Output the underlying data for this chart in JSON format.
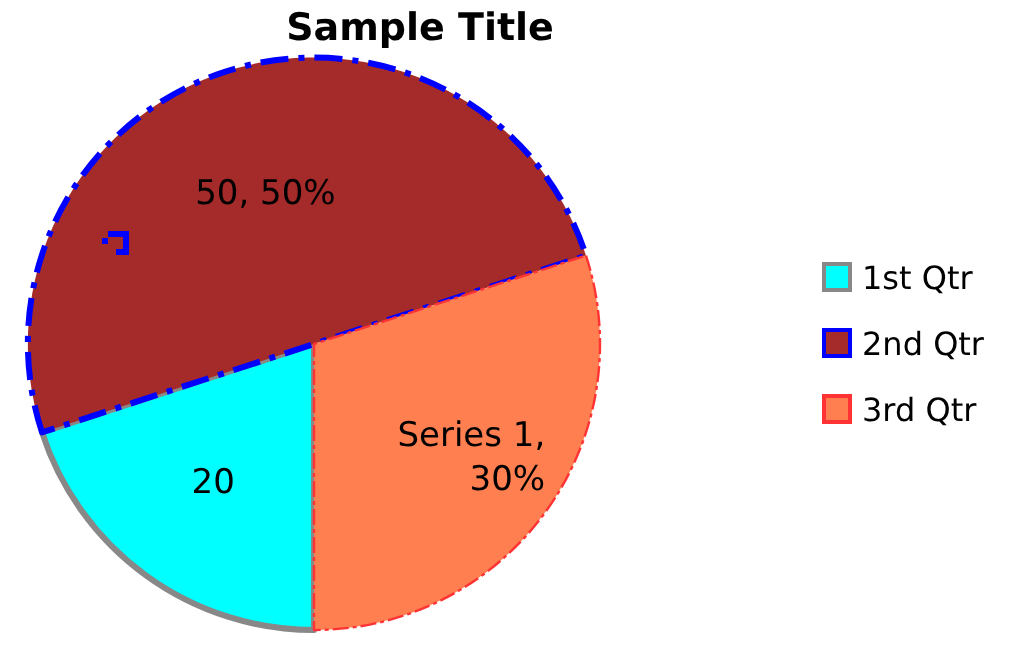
{
  "chart_data": {
    "type": "pie",
    "title": "Sample Title",
    "categories": [
      "1st Qtr",
      "2nd Qtr",
      "3rd Qtr"
    ],
    "values": [
      20,
      50,
      30
    ],
    "colors": [
      "#00ffff",
      "#a52a2a",
      "#ff7f50"
    ],
    "value_labels": [
      "20",
      "50, 50%",
      "Series 1, 30%"
    ],
    "legend": "right"
  }
}
